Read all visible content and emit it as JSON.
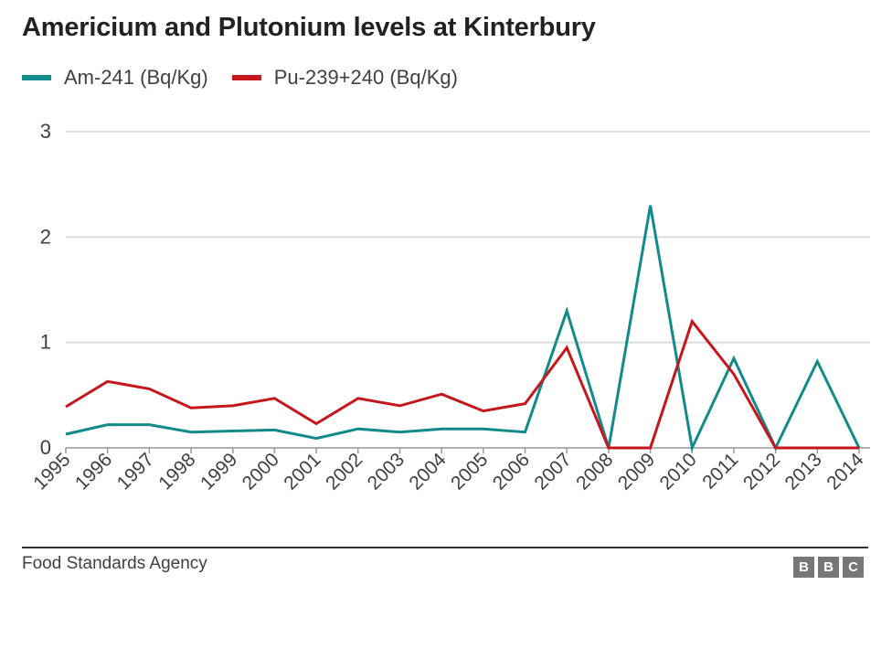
{
  "chart_data": {
    "type": "line",
    "title": "Americium and Plutonium levels at Kinterbury",
    "x": [
      "1995",
      "1996",
      "1997",
      "1998",
      "1999",
      "2000",
      "2001",
      "2002",
      "2003",
      "2004",
      "2005",
      "2006",
      "2007",
      "2008",
      "2009",
      "2010",
      "2011",
      "2012",
      "2013",
      "2014"
    ],
    "series": [
      {
        "name": "Am-241 (Bq/Kg)",
        "color": "#138a8a",
        "values": [
          0.13,
          0.22,
          0.22,
          0.15,
          0.16,
          0.17,
          0.09,
          0.18,
          0.15,
          0.18,
          0.18,
          0.15,
          1.3,
          0.0,
          2.3,
          0.0,
          0.85,
          0.0,
          0.82,
          0.0
        ]
      },
      {
        "name": "Pu-239+240 (Bq/Kg)",
        "color": "#c4161c",
        "values": [
          0.39,
          0.63,
          0.56,
          0.38,
          0.4,
          0.47,
          0.23,
          0.47,
          0.4,
          0.51,
          0.35,
          0.42,
          0.95,
          0.0,
          0.0,
          1.2,
          0.7,
          0.0,
          0.0,
          0.0
        ]
      }
    ],
    "yticks": [
      0,
      1,
      2,
      3
    ],
    "ylim": [
      0,
      3
    ],
    "grid": true,
    "legend_position": "top-left"
  },
  "footer": {
    "source": "Food Standards Agency",
    "logo_letters": [
      "B",
      "B",
      "C"
    ]
  }
}
